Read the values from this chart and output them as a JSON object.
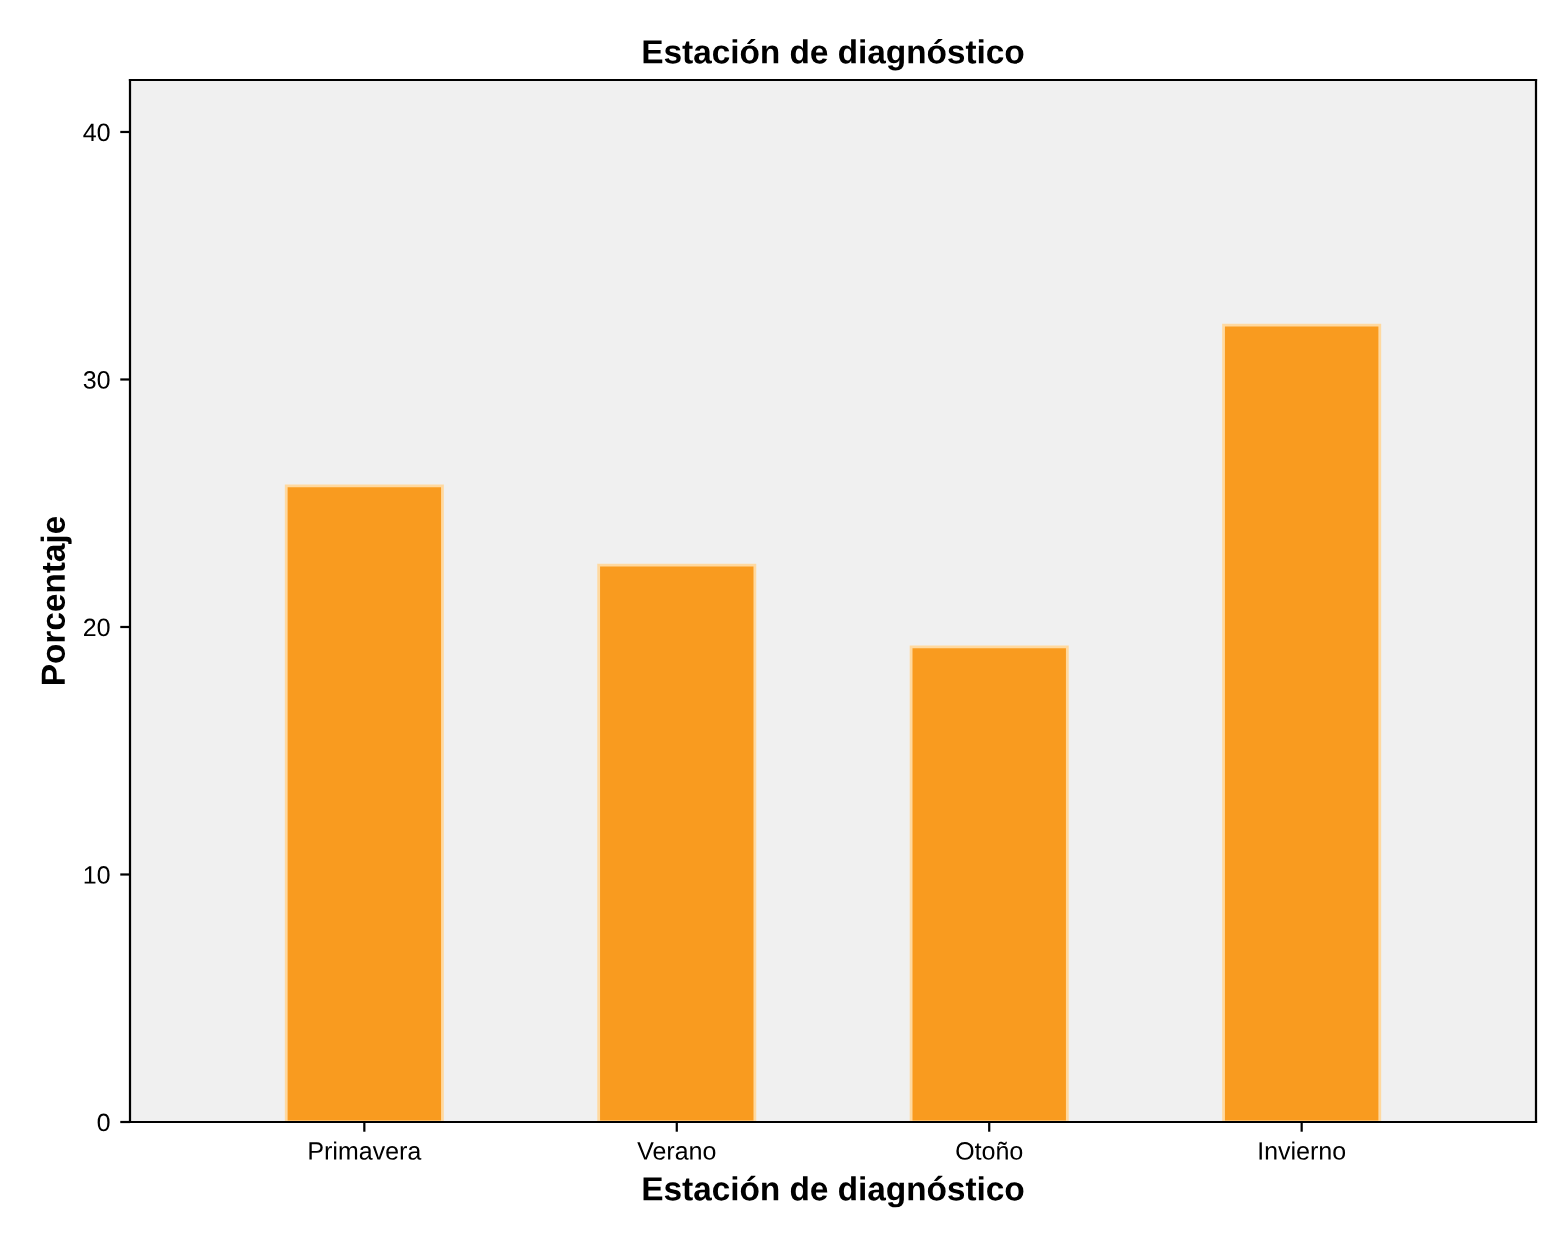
{
  "chart_data": {
    "type": "bar",
    "title": "Estación de diagnóstico",
    "xlabel": "Estación de diagnóstico",
    "ylabel": "Porcentaje",
    "categories": [
      "Primavera",
      "Verano",
      "Otoño",
      "Invierno"
    ],
    "values": [
      25.7,
      22.5,
      19.2,
      32.2
    ],
    "color": "#f99b1f",
    "ylim": [
      0,
      42.1
    ],
    "yticks": [
      0,
      10,
      20,
      30,
      40
    ],
    "grid": false
  }
}
